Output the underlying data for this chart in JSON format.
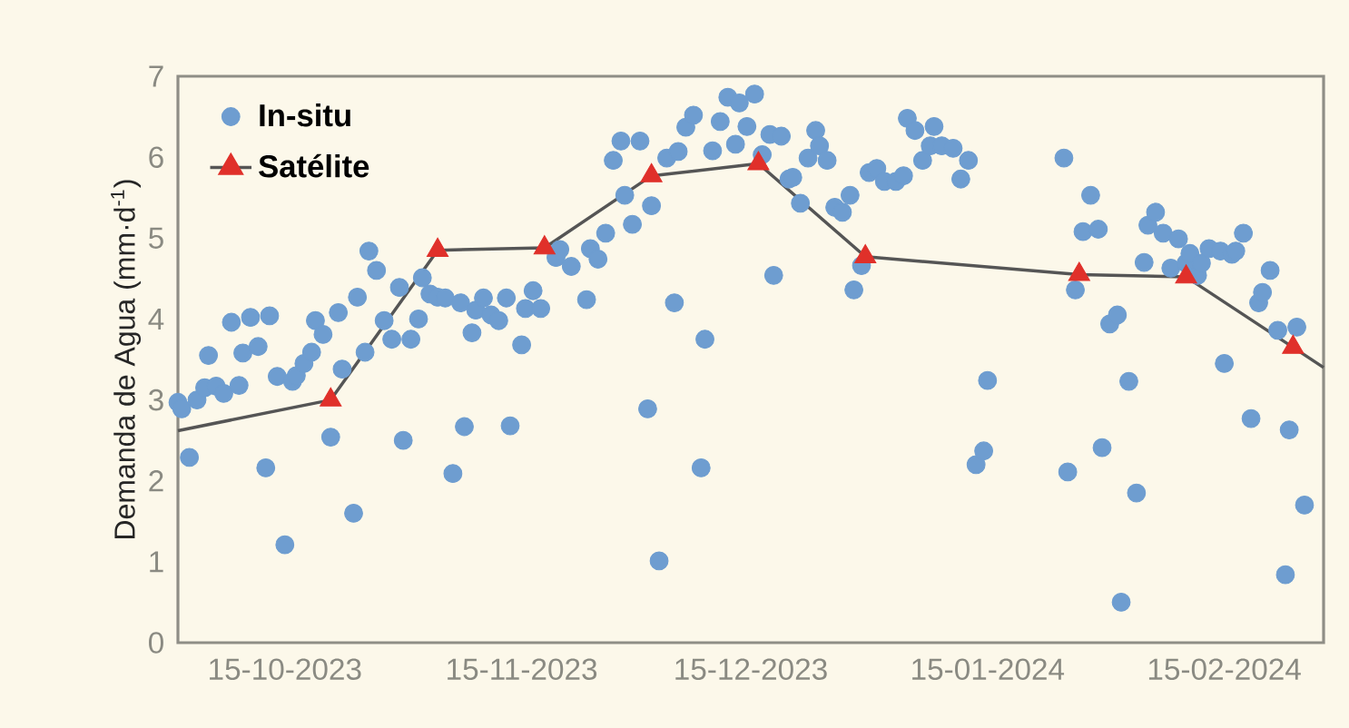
{
  "chart_data": {
    "type": "scatter",
    "ylabel": "Demanda de Agua (mm·d$^{-1}$)",
    "xlim": [
      "2023-10-01",
      "2024-02-28"
    ],
    "ylim": [
      0,
      7
    ],
    "yticks": [
      0,
      1,
      2,
      3,
      4,
      5,
      6,
      7
    ],
    "xticks": [
      {
        "value": "2023-10-15",
        "label": "15-10-2023"
      },
      {
        "value": "2023-11-15",
        "label": "15-11-2023"
      },
      {
        "value": "2023-12-15",
        "label": "15-12-2023"
      },
      {
        "value": "2024-01-15",
        "label": "15-01-2024"
      },
      {
        "value": "2024-02-15",
        "label": "15-02-2024"
      }
    ],
    "legend": "top left",
    "grid": false,
    "series": [
      {
        "name": "In-situ",
        "marker": "circle",
        "color": "#6e9dd0",
        "x": [
          "2023-10-01",
          "2023-10-01T12:00",
          "2023-10-02T12:00",
          "2023-10-03T12:00",
          "2023-10-04T12:00",
          "2023-10-05",
          "2023-10-06",
          "2023-10-07",
          "2023-10-08",
          "2023-10-09",
          "2023-10-09T12:00",
          "2023-10-10T12:00",
          "2023-10-11T12:00",
          "2023-10-12T12:00",
          "2023-10-13",
          "2023-10-14",
          "2023-10-15",
          "2023-10-16",
          "2023-10-16T12:00",
          "2023-10-17T12:00",
          "2023-10-18T12:00",
          "2023-10-19",
          "2023-10-20",
          "2023-10-21",
          "2023-10-22",
          "2023-10-22T12:00",
          "2023-10-24",
          "2023-10-24T12:00",
          "2023-10-25T12:00",
          "2023-10-26",
          "2023-10-27",
          "2023-10-28",
          "2023-10-29",
          "2023-10-30",
          "2023-10-30T12:00",
          "2023-10-31T12:00",
          "2023-11-01T12:00",
          "2023-11-02",
          "2023-11-03",
          "2023-11-04",
          "2023-11-05",
          "2023-11-06",
          "2023-11-07",
          "2023-11-07T12:00",
          "2023-11-08T12:00",
          "2023-11-09",
          "2023-11-10",
          "2023-11-11",
          "2023-11-12",
          "2023-11-13",
          "2023-11-13T12:00",
          "2023-11-15",
          "2023-11-15T12:00",
          "2023-11-16T12:00",
          "2023-11-17T12:00",
          "2023-11-19T12:00",
          "2023-11-20",
          "2023-11-21T12:00",
          "2023-11-23T12:00",
          "2023-11-24",
          "2023-11-25",
          "2023-11-26",
          "2023-11-27",
          "2023-11-28",
          "2023-11-28T12:00",
          "2023-11-29T12:00",
          "2023-11-30T12:00",
          "2023-12-01T12:00",
          "2023-12-02",
          "2023-12-03",
          "2023-12-04",
          "2023-12-05",
          "2023-12-05T12:00",
          "2023-12-06T12:00",
          "2023-12-07T12:00",
          "2023-12-08T12:00",
          "2023-12-09",
          "2023-12-10",
          "2023-12-11",
          "2023-12-12",
          "2023-12-13",
          "2023-12-13T12:00",
          "2023-12-14T12:00",
          "2023-12-15T12:00",
          "2023-12-16T12:00",
          "2023-12-17T12:00",
          "2023-12-18",
          "2023-12-19",
          "2023-12-20",
          "2023-12-20T12:00",
          "2023-12-21T12:00",
          "2023-12-22T12:00",
          "2023-12-23T12:00",
          "2023-12-24",
          "2023-12-25",
          "2023-12-26",
          "2023-12-27",
          "2023-12-28",
          "2023-12-28T12:00",
          "2023-12-29T12:00",
          "2023-12-30T12:00",
          "2023-12-31T12:00",
          "2024-01-01T12:00",
          "2024-01-03",
          "2024-01-04",
          "2024-01-04T12:00",
          "2024-01-05T12:00",
          "2024-01-06T12:00",
          "2024-01-07T12:00",
          "2024-01-08",
          "2024-01-09",
          "2024-01-10T12:00",
          "2024-01-11T12:00",
          "2024-01-12T12:00",
          "2024-01-13T12:00",
          "2024-01-14T12:00",
          "2024-01-15",
          "2024-01-25",
          "2024-01-25T12:00",
          "2024-01-26T12:00",
          "2024-01-27T12:00",
          "2024-01-28T12:00",
          "2024-01-29T12:00",
          "2024-01-30",
          "2024-01-31",
          "2024-02-01",
          "2024-02-01T12:00",
          "2024-02-02T12:00",
          "2024-02-03T12:00",
          "2024-02-04T12:00",
          "2024-02-05",
          "2024-02-06",
          "2024-02-07",
          "2024-02-08",
          "2024-02-09",
          "2024-02-10",
          "2024-02-10T12:00",
          "2024-02-11T12:00",
          "2024-02-12",
          "2024-02-13",
          "2024-02-14T12:00",
          "2024-02-15",
          "2024-02-16",
          "2024-02-16T12:00",
          "2024-02-17T12:00",
          "2024-02-18T12:00",
          "2024-02-19T12:00",
          "2024-02-20",
          "2024-02-21",
          "2024-02-22",
          "2024-02-23",
          "2024-02-23T12:00",
          "2024-02-24T12:00",
          "2024-02-25T12:00"
        ],
        "values": [
          2.97,
          2.89,
          2.29,
          3.0,
          3.15,
          3.55,
          3.17,
          3.08,
          3.96,
          3.18,
          3.58,
          4.02,
          3.66,
          2.16,
          4.04,
          3.29,
          1.21,
          3.23,
          3.3,
          3.45,
          3.59,
          3.98,
          3.81,
          2.54,
          4.08,
          3.38,
          1.6,
          4.27,
          3.59,
          4.84,
          4.6,
          3.98,
          3.75,
          4.39,
          2.5,
          3.75,
          4.0,
          4.51,
          4.31,
          4.27,
          4.26,
          2.09,
          4.2,
          2.67,
          3.83,
          4.11,
          4.26,
          4.05,
          3.98,
          4.26,
          2.68,
          3.68,
          4.13,
          4.35,
          4.13,
          4.76,
          4.86,
          4.65,
          4.24,
          4.87,
          4.74,
          5.06,
          5.96,
          6.2,
          5.53,
          5.17,
          6.2,
          2.89,
          5.4,
          1.01,
          5.99,
          4.2,
          6.07,
          6.37,
          6.52,
          2.16,
          3.75,
          6.08,
          6.44,
          6.74,
          6.16,
          6.67,
          6.38,
          6.78,
          6.03,
          6.28,
          4.54,
          6.26,
          5.73,
          5.75,
          5.43,
          5.99,
          6.33,
          6.14,
          5.96,
          5.38,
          5.32,
          5.53,
          4.36,
          4.66,
          5.81,
          5.86,
          5.7,
          5.7,
          5.77,
          6.48,
          6.33,
          5.96,
          6.14,
          6.38,
          6.14,
          6.11,
          5.73,
          5.96,
          2.2,
          2.37,
          3.24,
          5.99,
          2.11,
          4.36,
          5.08,
          5.53,
          5.11,
          2.41,
          3.94,
          4.05,
          0.5,
          3.23,
          1.85,
          4.7,
          5.16,
          5.32,
          5.06,
          4.63,
          4.99,
          4.69,
          4.81,
          4.54,
          4.69,
          4.87,
          4.84,
          3.45,
          4.8,
          4.84,
          5.06,
          2.77,
          4.2,
          4.33,
          4.6,
          3.86,
          0.84,
          2.63,
          3.9,
          1.7
        ]
      },
      {
        "type": "line",
        "marker": "none",
        "color": "#555555",
        "x": [
          "2023-10-01",
          "2023-10-21"
        ],
        "values": [
          2.62,
          3.0
        ]
      },
      {
        "type": "line",
        "marker": "none",
        "color": "#555555",
        "x": [
          "2024-02-24",
          "2024-02-28"
        ],
        "values": [
          3.65,
          3.4
        ]
      },
      {
        "name": "Satélite",
        "type": "line",
        "marker": "triangle",
        "color": "#555555",
        "colors": [
          "#e0302a",
          "#e0302a",
          "#e0302a",
          "#e0302a",
          "#e0302a",
          "#e0302a",
          "#e0302a",
          "#e0302a",
          "#e0302a"
        ],
        "x": [
          "2023-10-21",
          "2023-11-04",
          "2023-11-18",
          "2023-12-02",
          "2023-12-16",
          "2023-12-30",
          "2024-01-27",
          "2024-02-10",
          "2024-02-24"
        ],
        "values": [
          3.0,
          4.85,
          4.88,
          5.77,
          5.92,
          4.77,
          4.55,
          4.52,
          3.65
        ]
      }
    ]
  }
}
